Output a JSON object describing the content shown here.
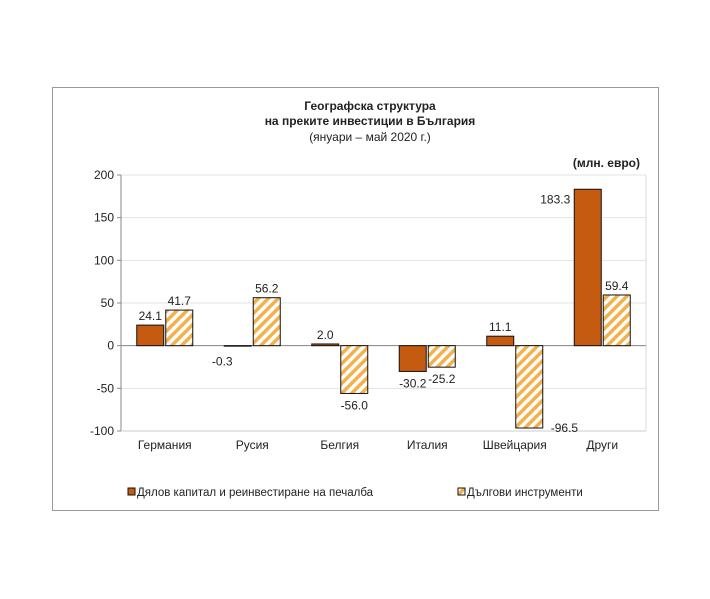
{
  "chart_data": {
    "type": "bar",
    "title": [
      "Географска структура",
      "на преките инвестиции в България"
    ],
    "subtitle": "(януари – май 2020 г.)",
    "unit_label": "(млн. евро)",
    "categories": [
      "Германия",
      "Русия",
      "Белгия",
      "Италия",
      "Швейцария",
      "Други"
    ],
    "series": [
      {
        "name": "Дялов капитал и реинвестиране на печалба",
        "values": [
          24.1,
          -0.3,
          2.0,
          -30.2,
          11.1,
          183.3
        ],
        "labels": [
          "24.1",
          "-0.3",
          "2.0",
          "-30.2",
          "11.1",
          "183.3"
        ],
        "color": "#c55a11",
        "pattern": "solid"
      },
      {
        "name": "Дългови инструменти",
        "values": [
          41.7,
          56.2,
          -56.0,
          -25.2,
          -96.5,
          59.4
        ],
        "labels": [
          "41.7",
          "56.2",
          "-56.0",
          "-25.2",
          "-96.5",
          "59.4"
        ],
        "color": "#f5b04a",
        "pattern": "hatched"
      }
    ],
    "ylim": [
      -100,
      200
    ],
    "yticks": [
      200,
      150,
      100,
      50,
      0,
      -50,
      -100
    ],
    "grid": true,
    "legend": "bottom"
  }
}
